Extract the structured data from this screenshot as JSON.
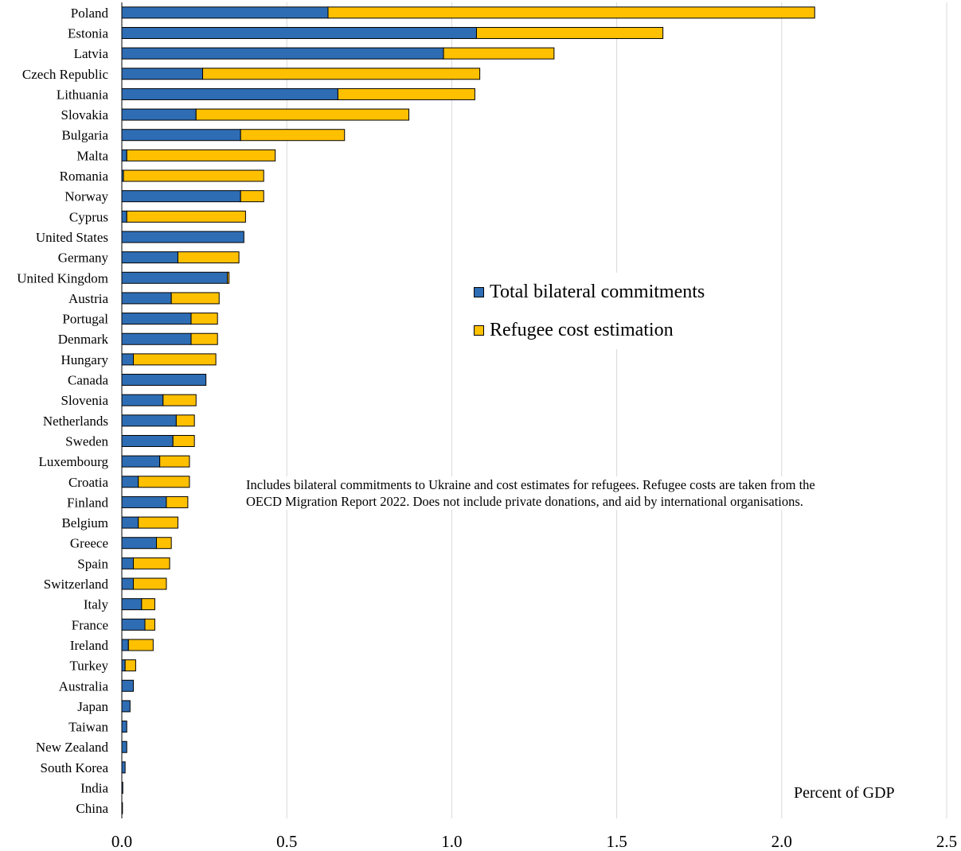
{
  "chart_data": {
    "type": "bar",
    "orientation": "horizontal",
    "stacked": true,
    "categories": [
      "Poland",
      "Estonia",
      "Latvia",
      "Czech Republic",
      "Lithuania",
      "Slovakia",
      "Bulgaria",
      "Malta",
      "Romania",
      "Norway",
      "Cyprus",
      "United States",
      "Germany",
      "United Kingdom",
      "Austria",
      "Portugal",
      "Denmark",
      "Hungary",
      "Canada",
      "Slovenia",
      "Netherlands",
      "Sweden",
      "Luxembourg",
      "Croatia",
      "Finland",
      "Belgium",
      "Greece",
      "Spain",
      "Switzerland",
      "Italy",
      "France",
      "Ireland",
      "Turkey",
      "Australia",
      "Japan",
      "Taiwan",
      "New Zealand",
      "South Korea",
      "India",
      "China"
    ],
    "series": [
      {
        "name": "Total bilateral commitments",
        "color": "#2e6db4",
        "values": [
          0.625,
          1.075,
          0.975,
          0.245,
          0.655,
          0.225,
          0.36,
          0.015,
          0.005,
          0.36,
          0.015,
          0.37,
          0.17,
          0.32,
          0.15,
          0.21,
          0.21,
          0.035,
          0.255,
          0.125,
          0.165,
          0.155,
          0.115,
          0.05,
          0.135,
          0.05,
          0.105,
          0.035,
          0.035,
          0.06,
          0.07,
          0.02,
          0.01,
          0.035,
          0.025,
          0.015,
          0.015,
          0.01,
          0.003,
          0.002
        ]
      },
      {
        "name": "Refugee cost estimation",
        "color": "#ffc000",
        "values": [
          1.475,
          0.565,
          0.335,
          0.84,
          0.415,
          0.645,
          0.315,
          0.45,
          0.425,
          0.07,
          0.36,
          0.0,
          0.185,
          0.005,
          0.145,
          0.08,
          0.08,
          0.25,
          0.0,
          0.1,
          0.055,
          0.065,
          0.09,
          0.155,
          0.065,
          0.12,
          0.045,
          0.11,
          0.1,
          0.04,
          0.03,
          0.075,
          0.032,
          0.0,
          0.0,
          0.0,
          0.0,
          0.0,
          0.0,
          0.0
        ]
      }
    ],
    "xlim": [
      0,
      2.5
    ],
    "x_ticks": [
      0.0,
      0.5,
      1.0,
      1.5,
      2.0,
      2.5
    ],
    "x_tick_labels": [
      "0.0",
      "0.5",
      "1.0",
      "1.5",
      "2.0",
      "2.5"
    ],
    "grid": "vertical",
    "legend_position": "center-right"
  },
  "legend": {
    "items": [
      {
        "label": "Total bilateral commitments",
        "color": "#2e6db4"
      },
      {
        "label": "Refugee cost estimation",
        "color": "#ffc000"
      }
    ]
  },
  "note": "Includes bilateral commitments to Ukraine and cost estimates for refugees. Refugee costs are taken from the OECD Migration Report 2022. Does not include private donations, and aid by international organisations.",
  "unit_label": "Percent of GDP"
}
